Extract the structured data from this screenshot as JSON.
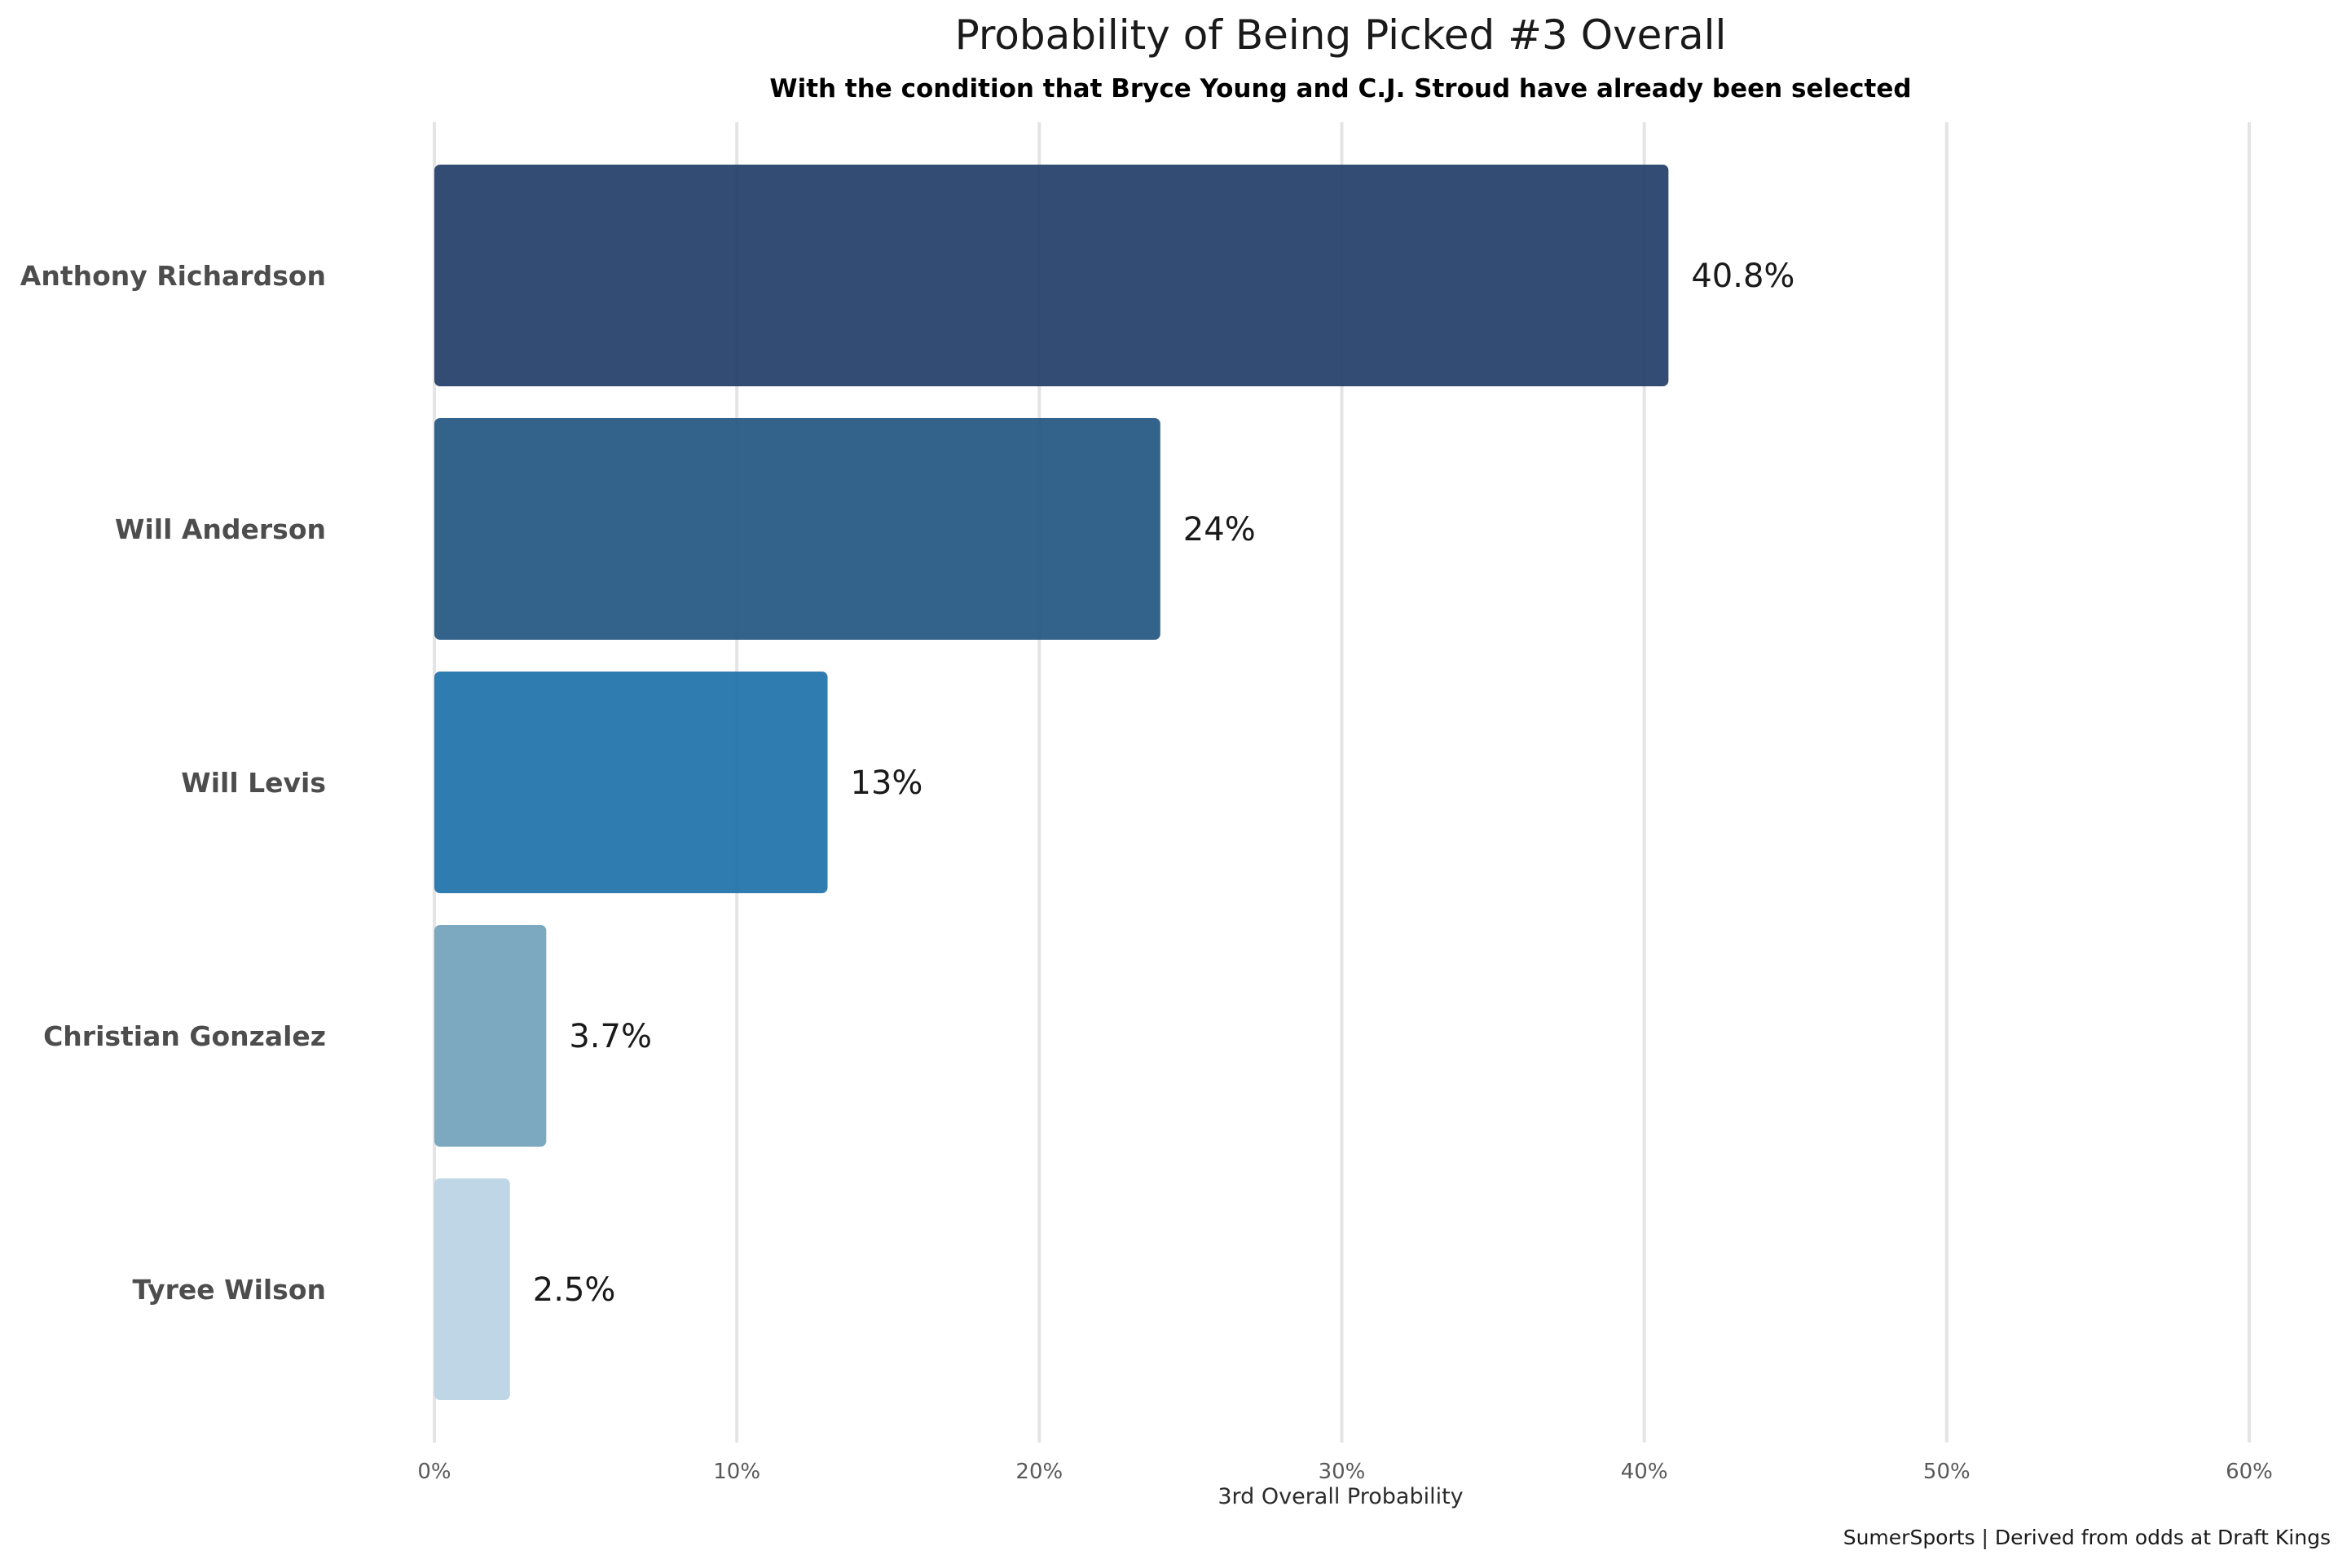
{
  "chart_data": {
    "type": "bar",
    "orientation": "horizontal",
    "title": "Probability of Being Picked #3 Overall",
    "subtitle": "With the condition that Bryce Young and C.J. Stroud have already been selected",
    "xlabel": "3rd Overall Probability",
    "ylabel": "",
    "caption": "SumerSports | Derived from odds at Draft Kings",
    "xlim": [
      0,
      60
    ],
    "x_ticks": [
      0,
      10,
      20,
      30,
      40,
      50,
      60
    ],
    "x_tick_labels": [
      "0%",
      "10%",
      "20%",
      "30%",
      "40%",
      "50%",
      "60%"
    ],
    "grid": "vertical",
    "legend": "none",
    "categories": [
      "Anthony Richardson",
      "Will Anderson",
      "Will Levis",
      "Christian Gonzalez",
      "Tyree Wilson"
    ],
    "values": [
      40.8,
      24,
      13,
      3.7,
      2.5
    ],
    "value_labels": [
      "40.8%",
      "24%",
      "13%",
      "3.7%",
      "2.5%"
    ],
    "colors": [
      "#1f3a65",
      "#1f5480",
      "#1a6fa8",
      "#6f9fba",
      "#b8d2e3"
    ]
  }
}
